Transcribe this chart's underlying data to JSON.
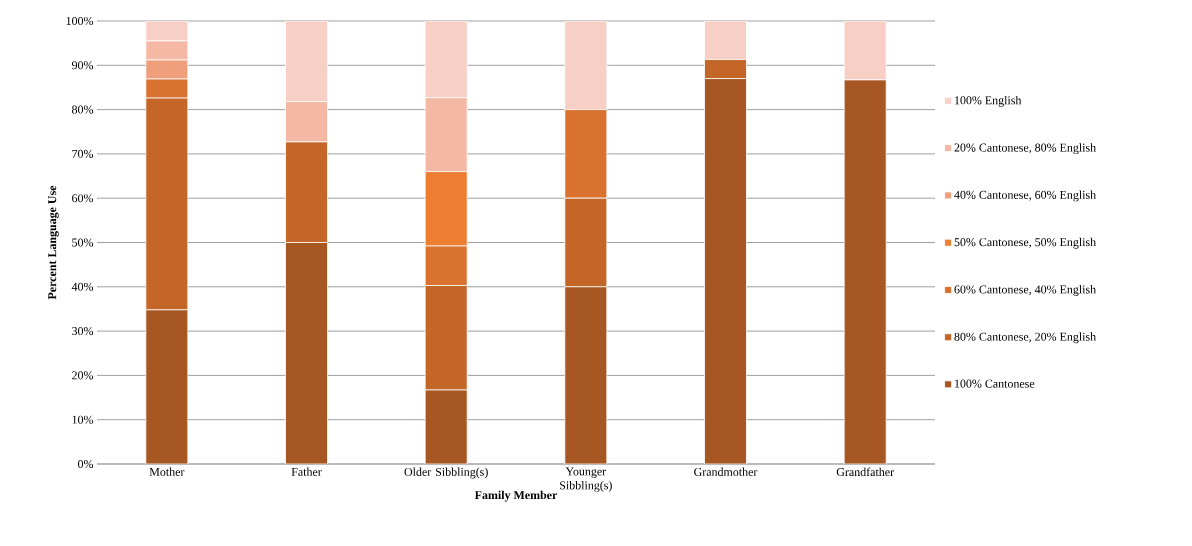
{
  "chart_data": {
    "type": "bar",
    "stacked": true,
    "xlabel": "Family Member",
    "ylabel": "Percent Language Use",
    "categories": [
      "Mother",
      "Father",
      "Older Sibbling(s)",
      "Younger Sibbling(s)",
      "Grandmother",
      "Grandfather"
    ],
    "series": [
      {
        "name": "100% Cantonese",
        "color": "#a65722",
        "values": [
          34.8,
          50,
          16.7,
          40,
          87.0,
          86.7
        ]
      },
      {
        "name": "80% Cantonese, 20% English",
        "color": "#c46628",
        "values": [
          47.8,
          22.7,
          23.6,
          20,
          4.3,
          0
        ]
      },
      {
        "name": "60% Cantonese, 40% English",
        "color": "#d8722e",
        "values": [
          4.3,
          0,
          8.9,
          20,
          0,
          0
        ]
      },
      {
        "name": "50% Cantonese, 50% English",
        "color": "#ed7d31",
        "values": [
          0,
          0,
          16.8,
          0,
          0,
          0
        ]
      },
      {
        "name": "40% Cantonese, 60% English",
        "color": "#f09f7c",
        "values": [
          4.3,
          0,
          0,
          0,
          0,
          0
        ]
      },
      {
        "name": "20% Cantonese, 80% English",
        "color": "#f4b8a4",
        "values": [
          4.3,
          9.1,
          16.7,
          0,
          0,
          0
        ]
      },
      {
        "name": "100% English",
        "color": "#f8cfc4",
        "values": [
          4.5,
          18.2,
          17.3,
          20,
          8.7,
          13.3
        ]
      }
    ],
    "ylim": [
      0,
      100
    ],
    "yticks": [
      {
        "value": 0,
        "label": "0%"
      },
      {
        "value": 10,
        "label": "10%"
      },
      {
        "value": 20,
        "label": "20%"
      },
      {
        "value": 30,
        "label": "30%"
      },
      {
        "value": 40,
        "label": "40%"
      },
      {
        "value": 50,
        "label": "50%"
      },
      {
        "value": 60,
        "label": "60%"
      },
      {
        "value": 70,
        "label": "70%"
      },
      {
        "value": 80,
        "label": "80%"
      },
      {
        "value": 90,
        "label": "90%"
      },
      {
        "value": 100,
        "label": "100%"
      }
    ],
    "grid": "y",
    "legend": "right"
  }
}
